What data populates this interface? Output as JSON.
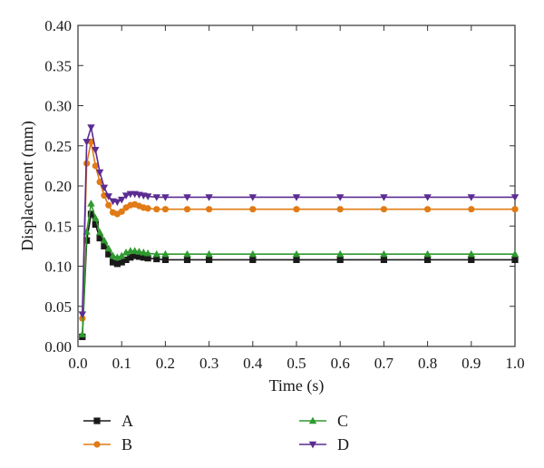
{
  "chart_data": {
    "type": "line",
    "title": "",
    "xlabel": "Time (s)",
    "ylabel": "Displacement (mm)",
    "xlim": [
      0.0,
      1.0
    ],
    "ylim": [
      0.0,
      0.4
    ],
    "x_ticks": [
      "0.0",
      "0.1",
      "0.2",
      "0.3",
      "0.4",
      "0.5",
      "0.6",
      "0.7",
      "0.8",
      "0.9",
      "1.0"
    ],
    "y_ticks": [
      "0.00",
      "0.05",
      "0.10",
      "0.15",
      "0.20",
      "0.25",
      "0.30",
      "0.35",
      "0.40"
    ],
    "grid": false,
    "legend_position": "bottom",
    "series": [
      {
        "name": "A",
        "color": "#1a1a1a",
        "marker": "square",
        "x": [
          0.01,
          0.02,
          0.03,
          0.04,
          0.05,
          0.06,
          0.07,
          0.08,
          0.09,
          0.1,
          0.11,
          0.12,
          0.13,
          0.14,
          0.15,
          0.16,
          0.18,
          0.2,
          0.25,
          0.3,
          0.4,
          0.5,
          0.6,
          0.7,
          0.8,
          0.9,
          1.0
        ],
        "y": [
          0.012,
          0.132,
          0.165,
          0.152,
          0.135,
          0.125,
          0.115,
          0.105,
          0.103,
          0.105,
          0.108,
          0.111,
          0.113,
          0.112,
          0.111,
          0.11,
          0.109,
          0.108,
          0.108,
          0.108,
          0.108,
          0.108,
          0.108,
          0.108,
          0.108,
          0.108,
          0.108
        ]
      },
      {
        "name": "B",
        "color": "#e07b16",
        "marker": "circle",
        "x": [
          0.01,
          0.02,
          0.03,
          0.04,
          0.05,
          0.06,
          0.07,
          0.08,
          0.09,
          0.1,
          0.11,
          0.12,
          0.13,
          0.14,
          0.15,
          0.16,
          0.18,
          0.2,
          0.25,
          0.3,
          0.4,
          0.5,
          0.6,
          0.7,
          0.8,
          0.9,
          1.0
        ],
        "y": [
          0.035,
          0.228,
          0.255,
          0.225,
          0.205,
          0.188,
          0.176,
          0.167,
          0.165,
          0.168,
          0.173,
          0.176,
          0.177,
          0.175,
          0.173,
          0.172,
          0.171,
          0.171,
          0.171,
          0.171,
          0.171,
          0.171,
          0.171,
          0.171,
          0.171,
          0.171,
          0.171
        ]
      },
      {
        "name": "C",
        "color": "#2f9a2f",
        "marker": "triangle-up",
        "x": [
          0.01,
          0.02,
          0.03,
          0.04,
          0.05,
          0.06,
          0.07,
          0.08,
          0.09,
          0.1,
          0.11,
          0.12,
          0.13,
          0.14,
          0.15,
          0.16,
          0.18,
          0.2,
          0.25,
          0.3,
          0.4,
          0.5,
          0.6,
          0.7,
          0.8,
          0.9,
          1.0
        ],
        "y": [
          0.015,
          0.143,
          0.178,
          0.16,
          0.142,
          0.132,
          0.122,
          0.113,
          0.111,
          0.113,
          0.117,
          0.119,
          0.119,
          0.118,
          0.117,
          0.116,
          0.115,
          0.115,
          0.115,
          0.115,
          0.115,
          0.115,
          0.115,
          0.115,
          0.115,
          0.115,
          0.115
        ]
      },
      {
        "name": "D",
        "color": "#5b2c91",
        "marker": "triangle-down",
        "x": [
          0.01,
          0.02,
          0.03,
          0.04,
          0.05,
          0.06,
          0.07,
          0.08,
          0.09,
          0.1,
          0.11,
          0.12,
          0.13,
          0.14,
          0.15,
          0.16,
          0.18,
          0.2,
          0.25,
          0.3,
          0.4,
          0.5,
          0.6,
          0.7,
          0.8,
          0.9,
          1.0
        ],
        "y": [
          0.04,
          0.255,
          0.273,
          0.245,
          0.217,
          0.198,
          0.187,
          0.181,
          0.18,
          0.183,
          0.188,
          0.19,
          0.19,
          0.189,
          0.188,
          0.187,
          0.186,
          0.186,
          0.186,
          0.186,
          0.186,
          0.186,
          0.186,
          0.186,
          0.186,
          0.186,
          0.186
        ]
      }
    ]
  }
}
